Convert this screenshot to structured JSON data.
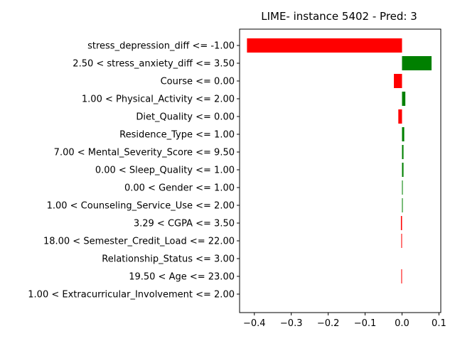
{
  "chart_data": {
    "type": "bar",
    "orientation": "horizontal",
    "title": "LIME- instance 5402 - Pred: 3",
    "xlabel": "",
    "ylabel": "",
    "xlim": [
      -0.44,
      0.105
    ],
    "xticks": [
      -0.4,
      -0.3,
      -0.2,
      -0.1,
      0.0,
      0.1
    ],
    "xtick_labels": [
      "−0.4",
      "−0.3",
      "−0.2",
      "−0.1",
      "0.0",
      "0.1"
    ],
    "grid": false,
    "categories": [
      "stress_depression_diff <= -1.00",
      "2.50 < stress_anxiety_diff <= 3.50",
      "Course <= 0.00",
      "1.00 < Physical_Activity <= 2.00",
      "Diet_Quality <= 0.00",
      "Residence_Type <= 1.00",
      "7.00 < Mental_Severity_Score <= 9.50",
      "0.00 < Sleep_Quality <= 1.00",
      "0.00 < Gender <= 1.00",
      "1.00 < Counseling_Service_Use <= 2.00",
      "3.29 < CGPA <= 3.50",
      "18.00 < Semester_Credit_Load <= 22.00",
      "Relationship_Status <= 3.00",
      "19.50 < Age <= 23.00",
      "1.00 < Extracurricular_Involvement <= 2.00"
    ],
    "values": [
      -0.42,
      0.08,
      -0.022,
      0.009,
      -0.01,
      0.006,
      0.004,
      0.004,
      0.002,
      0.002,
      -0.003,
      -0.002,
      0.0,
      -0.002,
      0.0
    ],
    "colors": {
      "positive": "#008000",
      "negative": "#ff0000"
    }
  }
}
